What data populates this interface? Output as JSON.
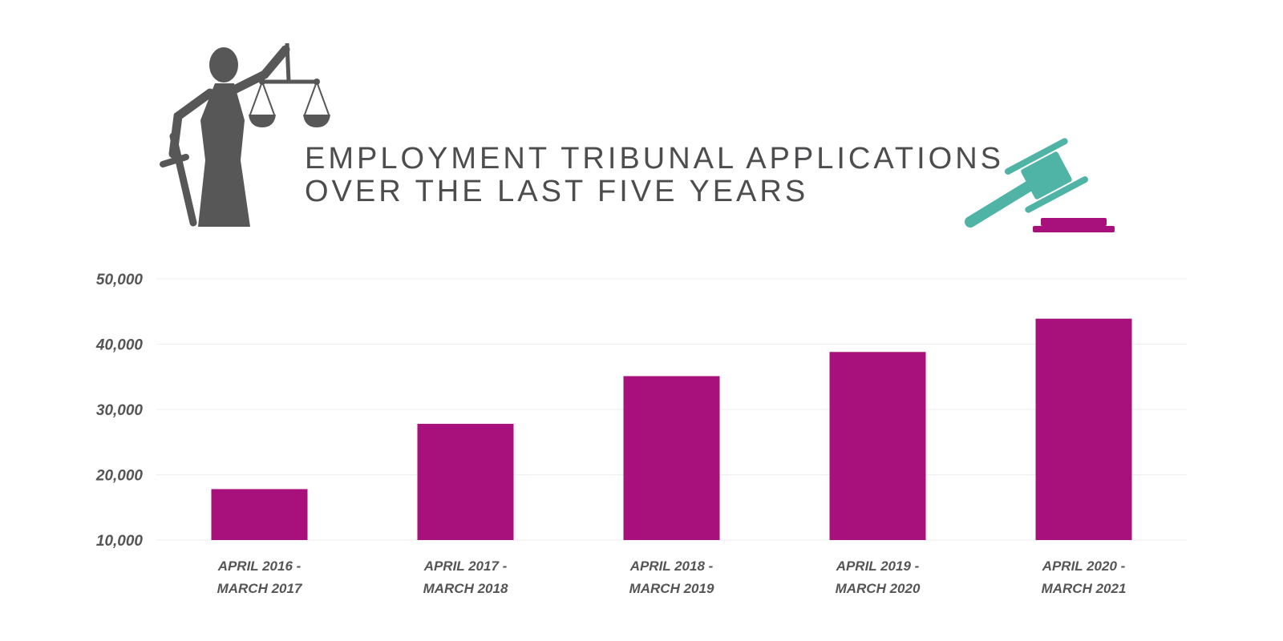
{
  "title_lines": [
    "EMPLOYMENT TRIBUNAL APPLICATIONS",
    "OVER THE LAST FIVE YEARS"
  ],
  "icons": {
    "left": "lady-justice-icon",
    "right": "gavel-icon"
  },
  "colors": {
    "bar": "#a8117b",
    "title": "#4d4d4f",
    "justice": "#575757",
    "gavel_head": "#4fb3a6",
    "gavel_block": "#a8117b",
    "grid": "#eeeeee",
    "axis_text": "#555555"
  },
  "chart_data": {
    "type": "bar",
    "categories": [
      [
        "APRIL 2016 -",
        "MARCH 2017"
      ],
      [
        "APRIL 2017 -",
        "MARCH 2018"
      ],
      [
        "APRIL 2018 -",
        "MARCH 2019"
      ],
      [
        "APRIL 2019 -",
        "MARCH 2020"
      ],
      [
        "APRIL 2020 -",
        "MARCH 2021"
      ]
    ],
    "values": [
      17800,
      27800,
      35100,
      38800,
      43900
    ],
    "ylim": [
      10000,
      50000
    ],
    "yticks": [
      10000,
      20000,
      30000,
      40000,
      50000
    ],
    "ytick_labels": [
      "10,000",
      "20,000",
      "30,000",
      "40,000",
      "50,000"
    ],
    "grid": true,
    "legend": "none",
    "xlabel": "",
    "ylabel": ""
  }
}
